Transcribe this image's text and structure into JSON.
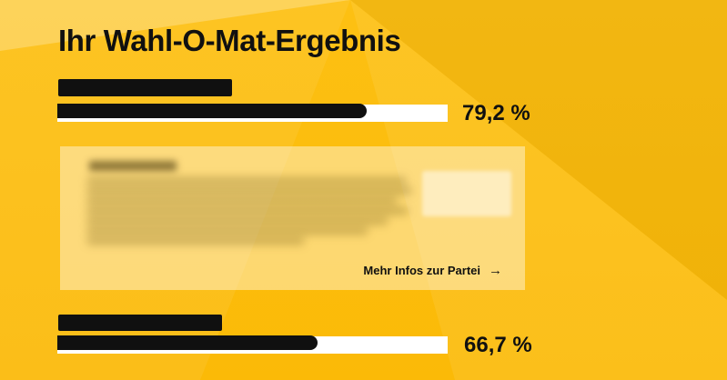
{
  "header": {
    "title": "Ihr Wahl-O-Mat-Ergebnis"
  },
  "results": [
    {
      "party_name_redacted": true,
      "percent": 79.2,
      "percent_label": "79,2 %"
    },
    {
      "party_name_redacted": true,
      "percent": 66.7,
      "percent_label": "66,7 %"
    }
  ],
  "party_card": {
    "content_blurred": true,
    "link_label": "Mehr Infos zur Partei",
    "link_arrow_glyph": "→"
  },
  "colors": {
    "background": "#fcbe11",
    "background_light_ray": "#ffd04a",
    "background_dark_ray": "#f4ad00",
    "bar_track": "#ffffff",
    "bar_fill": "#101010",
    "card_overlay": "rgba(255,255,255,0.42)",
    "text": "#101010"
  }
}
